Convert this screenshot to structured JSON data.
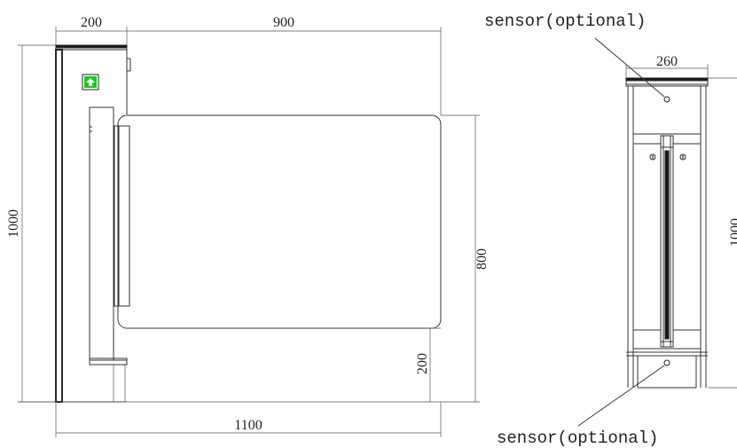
{
  "colors": {
    "line": "#333333",
    "arrow_icon_fill": "#1ec51e",
    "background": "#ffffff"
  },
  "front_view": {
    "dim_post_width": "200",
    "dim_gate_width": "900",
    "dim_overall_height": "1000",
    "dim_panel_height": "800",
    "dim_ground_clearance": "200",
    "dim_overall_width": "1100",
    "arrow_icon": "up-arrow-icon"
  },
  "side_view": {
    "dim_top_width": "260",
    "dim_height": "1000",
    "sensor_label_top": "sensor(optional)",
    "sensor_label_bottom": "sensor(optional)"
  }
}
